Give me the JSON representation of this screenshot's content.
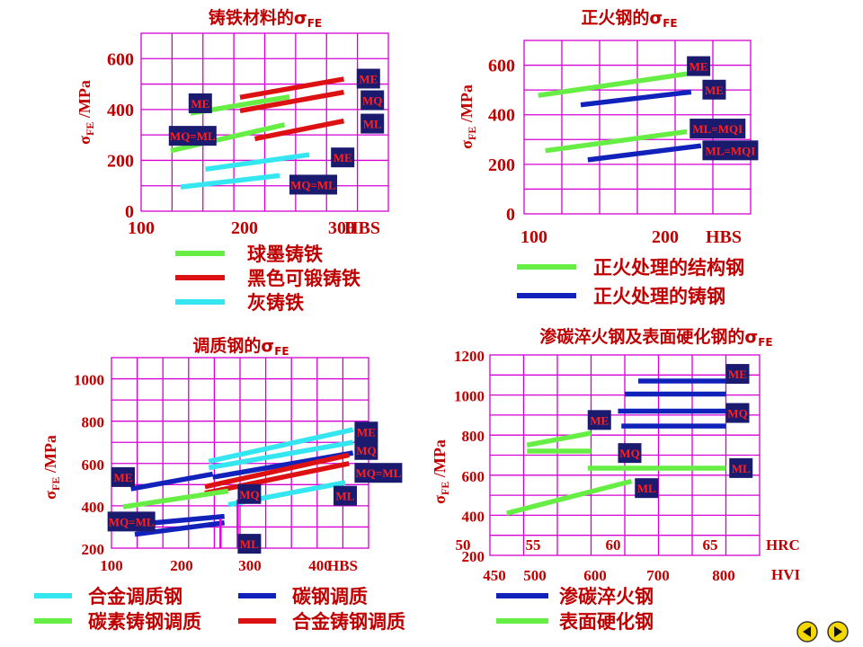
{
  "colors": {
    "grid": "#d400d4",
    "green": "#66ee44",
    "red": "#dd1111",
    "cyan": "#33e6f0",
    "blue": "#1122bb",
    "text": "#c00000",
    "tag_bg": "#1a1a6e",
    "tag_text": "#ff2020",
    "tag_text_alt": "#22ff88"
  },
  "nav": {
    "prev_icon": "left-arrow-icon",
    "next_icon": "right-arrow-icon"
  },
  "chart_data": [
    {
      "id": "c1",
      "type": "line",
      "title": "铸铁材料的σ",
      "title_sub": "FE",
      "ylabel": "σ",
      "ylabel_sub": "FE",
      "ylabel_rest": " /MPa",
      "xlabel": "HBS",
      "xlim": [
        100,
        350
      ],
      "ylim": [
        0,
        700
      ],
      "xticks": [
        100,
        200,
        300
      ],
      "yticks": [
        0,
        200,
        400,
        600
      ],
      "legend": [
        {
          "color": "green",
          "label": "球墨铸铁"
        },
        {
          "color": "red",
          "label": "黑色可锻铸铁"
        },
        {
          "color": "cyan",
          "label": "灰铸铁"
        }
      ],
      "series": [
        {
          "color": "green",
          "x": [
            150,
            250
          ],
          "y": [
            385,
            450
          ]
        },
        {
          "color": "green",
          "x": [
            130,
            245
          ],
          "y": [
            238,
            340
          ]
        },
        {
          "color": "red",
          "x": [
            200,
            305
          ],
          "y": [
            448,
            520
          ]
        },
        {
          "color": "red",
          "x": [
            200,
            305
          ],
          "y": [
            395,
            468
          ]
        },
        {
          "color": "red",
          "x": [
            215,
            305
          ],
          "y": [
            285,
            355
          ]
        },
        {
          "color": "cyan",
          "x": [
            165,
            270
          ],
          "y": [
            165,
            222
          ]
        },
        {
          "color": "cyan",
          "x": [
            140,
            240
          ],
          "y": [
            95,
            140
          ]
        }
      ],
      "tags": [
        {
          "text": "ME",
          "x": 148,
          "y": 428
        },
        {
          "text": "MQ=ML",
          "x": 128,
          "y": 300
        },
        {
          "text": "ME",
          "x": 318,
          "y": 525
        },
        {
          "text": "MQ",
          "x": 322,
          "y": 440
        },
        {
          "text": "ML",
          "x": 322,
          "y": 348
        },
        {
          "text": "ME",
          "x": 292,
          "y": 215
        },
        {
          "text": "MQ=ML",
          "x": 250,
          "y": 108
        }
      ]
    },
    {
      "id": "c2",
      "type": "line",
      "title": "正火钢的σ",
      "title_sub": "FE",
      "ylabel": "σ",
      "ylabel_sub": "FE",
      "ylabel_rest": " /MPa",
      "xlabel": "HBS",
      "xlim": [
        100,
        260
      ],
      "ylim": [
        0,
        700
      ],
      "xticks": [
        100,
        200
      ],
      "yticks": [
        0,
        200,
        400,
        600
      ],
      "legend": [
        {
          "color": "green",
          "label": "正火处理的结构钢"
        },
        {
          "color": "blue",
          "label": "正火处理的铸钢"
        }
      ],
      "series": [
        {
          "color": "green",
          "x": [
            110,
            215
          ],
          "y": [
            478,
            565
          ]
        },
        {
          "color": "blue",
          "x": [
            140,
            218
          ],
          "y": [
            440,
            492
          ]
        },
        {
          "color": "green",
          "x": [
            115,
            215
          ],
          "y": [
            255,
            332
          ]
        },
        {
          "color": "blue",
          "x": [
            145,
            225
          ],
          "y": [
            218,
            275
          ]
        }
      ],
      "tags": [
        {
          "text": "ME",
          "x": 215,
          "y": 600
        },
        {
          "text": "ME",
          "x": 226,
          "y": 505,
          "alt": true
        },
        {
          "text": "ML=MQI",
          "x": 217,
          "y": 348
        },
        {
          "text": "ML=MQI",
          "x": 226,
          "y": 260
        }
      ]
    },
    {
      "id": "c3",
      "type": "line",
      "title": "调质钢的σ",
      "title_sub": "FE",
      "ylabel": "σ",
      "ylabel_sub": "FE",
      "ylabel_rest": " /MPa",
      "xlabel": "HBS",
      "xlim": [
        100,
        430
      ],
      "ylim": [
        200,
        1100
      ],
      "xticks": [
        100,
        200,
        300,
        400
      ],
      "yticks": [
        200,
        400,
        600,
        800,
        1000
      ],
      "legend": [
        {
          "color": "cyan",
          "label": "合金调质钢"
        },
        {
          "color": "blue",
          "label": "碳钢调质"
        },
        {
          "color": "green",
          "label": "碳素铸钢调质"
        },
        {
          "color": "red",
          "label": "合金铸钢调质"
        }
      ],
      "series": [
        {
          "color": "cyan",
          "x": [
            225,
            410
          ],
          "y": [
            610,
            760
          ]
        },
        {
          "color": "cyan",
          "x": [
            225,
            410
          ],
          "y": [
            580,
            700
          ]
        },
        {
          "color": "blue",
          "x": [
            125,
            230
          ],
          "y": [
            480,
            550
          ]
        },
        {
          "color": "blue",
          "x": [
            230,
            410
          ],
          "y": [
            535,
            650
          ]
        },
        {
          "color": "red",
          "x": [
            220,
            405
          ],
          "y": [
            490,
            640
          ]
        },
        {
          "color": "red",
          "x": [
            220,
            405
          ],
          "y": [
            460,
            600
          ]
        },
        {
          "color": "green",
          "x": [
            115,
            250
          ],
          "y": [
            395,
            470
          ]
        },
        {
          "color": "cyan",
          "x": [
            250,
            400
          ],
          "y": [
            405,
            510
          ]
        },
        {
          "color": "blue",
          "x": [
            125,
            245
          ],
          "y": [
            310,
            350
          ]
        },
        {
          "color": "blue",
          "x": [
            130,
            245
          ],
          "y": [
            265,
            320
          ]
        },
        {
          "color": "magenta",
          "x": [
            240,
            240
          ],
          "y": [
            200,
            340
          ]
        },
        {
          "color": "magenta",
          "x": [
            262,
            262
          ],
          "y": [
            200,
            430
          ]
        }
      ],
      "tags": [
        {
          "text": "ME",
          "x": 100,
          "y": 540
        },
        {
          "text": "MQ=ML",
          "x": 95,
          "y": 330
        },
        {
          "text": "ME",
          "x": 412,
          "y": 755
        },
        {
          "text": "MQ",
          "x": 412,
          "y": 668
        },
        {
          "text": "MQ=ML",
          "x": 412,
          "y": 560
        },
        {
          "text": "ML",
          "x": 385,
          "y": 452
        },
        {
          "text": "MQ",
          "x": 262,
          "y": 460
        },
        {
          "text": "ML",
          "x": 262,
          "y": 225
        }
      ]
    },
    {
      "id": "c4",
      "type": "line",
      "title": "渗碳淬火钢及表面硬化钢的σ",
      "title_sub": "FE",
      "ylabel": "σ",
      "ylabel_sub": "FE",
      "ylabel_rest": " /MPa",
      "xlabel": "HVI",
      "xlabel2": "HRC",
      "xlim": [
        450,
        850
      ],
      "ylim": [
        200,
        1200
      ],
      "xticks": [
        450,
        500,
        600,
        700,
        800
      ],
      "yticks": [
        200,
        400,
        600,
        800,
        1000,
        1200
      ],
      "hrc_ticks": [
        {
          "label": "50",
          "x": 515
        },
        {
          "label": "55",
          "x": 593
        },
        {
          "label": "60",
          "x": 682
        },
        {
          "label": "65",
          "x": 790
        }
      ],
      "legend": [
        {
          "color": "blue",
          "label": "渗碳淬火钢"
        },
        {
          "color": "green",
          "label": "表面硬化钢"
        }
      ],
      "series": [
        {
          "color": "blue",
          "x": [
            670,
            800
          ],
          "y": [
            1070,
            1070
          ]
        },
        {
          "color": "blue",
          "x": [
            650,
            800
          ],
          "y": [
            1005,
            1005
          ]
        },
        {
          "color": "blue",
          "x": [
            640,
            800
          ],
          "y": [
            920,
            920
          ]
        },
        {
          "color": "blue",
          "x": [
            645,
            800
          ],
          "y": [
            845,
            845
          ]
        },
        {
          "color": "green",
          "x": [
            505,
            600
          ],
          "y": [
            750,
            810
          ]
        },
        {
          "color": "green",
          "x": [
            505,
            600
          ],
          "y": [
            720,
            720
          ]
        },
        {
          "color": "green",
          "x": [
            595,
            800
          ],
          "y": [
            635,
            635
          ]
        },
        {
          "color": "green",
          "x": [
            475,
            660
          ],
          "y": [
            410,
            570
          ]
        }
      ],
      "tags": [
        {
          "text": "ME",
          "x": 800,
          "y": 1110
        },
        {
          "text": "MQ",
          "x": 800,
          "y": 915
        },
        {
          "text": "ML",
          "x": 805,
          "y": 640
        },
        {
          "text": "ME",
          "x": 595,
          "y": 880
        },
        {
          "text": "MQ",
          "x": 640,
          "y": 715
        },
        {
          "text": "ML",
          "x": 665,
          "y": 540
        }
      ]
    }
  ]
}
